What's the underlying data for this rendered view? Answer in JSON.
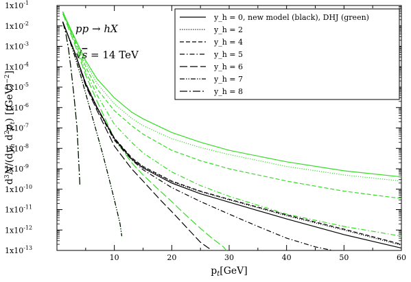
{
  "chart_data": {
    "type": "line",
    "title": "",
    "xlabel": "p_t [GeV]",
    "ylabel": "d³N/(dy_h d²p_t) [(GeV)⁻²]",
    "xlim": [
      0,
      60
    ],
    "ylim": [
      1e-13,
      0.1
    ],
    "yscale": "log",
    "grid": false,
    "legend_position": "top-right",
    "x_ticks": [
      10,
      20,
      30,
      40,
      50,
      60
    ],
    "x_tick_labels": [
      "10",
      "20",
      "30",
      "40",
      "50",
      "60"
    ],
    "y_tick_labels": [
      "1x10",
      "1x10",
      "1x10",
      "1x10",
      "1x10",
      "1x10",
      "1x10",
      "1x10",
      "1x10",
      "1x10",
      "1x10",
      "1x10",
      "1x10"
    ],
    "y_tick_exponents": [
      "-1",
      "-2",
      "-3",
      "-4",
      "-5",
      "-6",
      "-7",
      "-8",
      "-9",
      "-10",
      "-11",
      "-12",
      "-13"
    ],
    "annotations": [
      "pp → hX",
      "√s = 14 TeV"
    ],
    "colors": {
      "new_model": "#000000",
      "DHJ": "#33dd22"
    },
    "legend": [
      {
        "label": "y_h = 0, new model (black), DHJ (green)",
        "dash": "solid"
      },
      {
        "label": "y_h = 2",
        "dash": "dotted"
      },
      {
        "label": "y_h = 4",
        "dash": "dash"
      },
      {
        "label": "y_h = 5",
        "dash": "dashdot"
      },
      {
        "label": "y_h = 6",
        "dash": "longdash"
      },
      {
        "label": "y_h = 7",
        "dash": "dashdotdot"
      },
      {
        "label": "y_h = 8",
        "dash": "longdashdot"
      }
    ],
    "series": [
      {
        "model": "new model",
        "yh": "0",
        "dash": "solid",
        "color": "#000000",
        "x": [
          1,
          2,
          3,
          5,
          7,
          10,
          13,
          15,
          20,
          25,
          30,
          40,
          50,
          60
        ],
        "y": [
          0.016,
          0.003,
          0.0006,
          1.5e-05,
          1e-06,
          3e-08,
          3e-09,
          1.1e-09,
          2e-10,
          6e-11,
          2.3e-11,
          3.5e-12,
          6e-13,
          1.3e-13
        ]
      },
      {
        "model": "new model",
        "yh": "2",
        "dash": "dotted",
        "color": "#000000",
        "x": [
          1,
          2,
          3,
          5,
          7,
          10,
          13,
          15,
          20,
          25,
          30,
          40,
          50,
          60
        ],
        "y": [
          0.016,
          0.003,
          0.0006,
          1.5e-05,
          1e-06,
          3e-08,
          3.2e-09,
          1.2e-09,
          2.3e-10,
          7.5e-11,
          3e-11,
          5e-12,
          1e-12,
          1.8e-13
        ]
      },
      {
        "model": "new model",
        "yh": "4",
        "dash": "dash",
        "color": "#000000",
        "x": [
          1,
          2,
          3,
          5,
          7,
          10,
          13,
          15,
          20,
          25,
          30,
          40,
          50,
          60
        ],
        "y": [
          0.016,
          0.003,
          0.0006,
          1.6e-05,
          1e-06,
          3.2e-08,
          3.5e-09,
          1.3e-09,
          2.5e-10,
          8e-11,
          3.2e-11,
          5.5e-12,
          1.1e-12,
          2e-13
        ]
      },
      {
        "model": "new model",
        "yh": "5",
        "dash": "dashdot",
        "color": "#000000",
        "x": [
          1,
          2,
          3,
          5,
          7,
          10,
          13,
          15,
          20,
          25,
          30,
          35,
          40,
          45,
          48
        ],
        "y": [
          0.016,
          0.003,
          0.0006,
          1.4e-05,
          9e-07,
          2.5e-08,
          2.8e-09,
          9e-10,
          1.2e-10,
          2.5e-11,
          6e-12,
          1.5e-12,
          4e-13,
          1.5e-13,
          1e-13
        ]
      },
      {
        "model": "new model",
        "yh": "6",
        "dash": "longdash",
        "color": "#000000",
        "x": [
          1,
          2,
          3,
          5,
          7,
          10,
          13,
          15,
          18,
          20,
          22,
          25,
          27
        ],
        "y": [
          0.016,
          0.003,
          0.0006,
          1.2e-05,
          7e-07,
          1.3e-08,
          1e-09,
          2.5e-10,
          3e-11,
          8e-12,
          2e-12,
          2.5e-13,
          1e-13
        ]
      },
      {
        "model": "new model",
        "yh": "7",
        "dash": "dashdotdot",
        "color": "#000000",
        "x": [
          1,
          1.5,
          2,
          3,
          4,
          5,
          6,
          7,
          8,
          9,
          10,
          10.5,
          11,
          11.3
        ],
        "y": [
          0.016,
          0.007,
          0.003,
          0.0004,
          5e-05,
          5e-06,
          5e-07,
          5e-08,
          5e-09,
          4e-10,
          3e-11,
          8e-12,
          2e-12,
          5e-13
        ]
      },
      {
        "model": "new model",
        "yh": "8",
        "dash": "longdashdot",
        "color": "#000000",
        "x": [
          1,
          1.5,
          2,
          2.5,
          3,
          3.5,
          4
        ],
        "y": [
          0.016,
          0.005,
          0.0008,
          6e-05,
          3e-06,
          1e-07,
          1.5e-10
        ]
      },
      {
        "model": "DHJ",
        "yh": "0",
        "dash": "solid",
        "color": "#33dd22",
        "x": [
          1,
          2,
          3,
          5,
          7,
          10,
          13,
          15,
          20,
          25,
          30,
          40,
          50,
          60
        ],
        "y": [
          0.05,
          0.012,
          0.003,
          0.0002,
          2.5e-05,
          3e-06,
          6e-07,
          2.8e-07,
          6e-08,
          2e-08,
          8e-09,
          2.2e-09,
          8e-10,
          4e-10
        ]
      },
      {
        "model": "DHJ",
        "yh": "2",
        "dash": "dotted",
        "color": "#33dd22",
        "x": [
          1,
          2,
          3,
          5,
          7,
          10,
          13,
          15,
          20,
          25,
          30,
          40,
          50,
          60
        ],
        "y": [
          0.05,
          0.012,
          0.003,
          0.00015,
          1.5e-05,
          1.5e-06,
          3e-07,
          1.3e-07,
          3e-08,
          1.1e-08,
          5e-09,
          1.3e-09,
          5e-10,
          2.5e-10
        ]
      },
      {
        "model": "DHJ",
        "yh": "4",
        "dash": "dash",
        "color": "#33dd22",
        "x": [
          1,
          2,
          3,
          5,
          7,
          10,
          13,
          15,
          20,
          25,
          30,
          40,
          50,
          60
        ],
        "y": [
          0.05,
          0.011,
          0.0025,
          0.0001,
          8e-06,
          7e-07,
          1.3e-07,
          5e-08,
          8e-09,
          2.5e-09,
          1e-09,
          2.5e-10,
          8e-11,
          3.5e-11
        ]
      },
      {
        "model": "DHJ",
        "yh": "5",
        "dash": "dashdot",
        "color": "#33dd22",
        "x": [
          1,
          2,
          3,
          5,
          7,
          10,
          13,
          15,
          20,
          25,
          30,
          40,
          50,
          60
        ],
        "y": [
          0.05,
          0.01,
          0.002,
          6e-05,
          4e-06,
          1.5e-07,
          2e-08,
          6e-09,
          7e-10,
          1.5e-10,
          4.5e-11,
          6e-12,
          1.5e-12,
          5e-13
        ]
      },
      {
        "model": "DHJ",
        "yh": "6",
        "dash": "longdash",
        "color": "#33dd22",
        "x": [
          1,
          2,
          3,
          5,
          7,
          10,
          13,
          15,
          18,
          20,
          22,
          25,
          27,
          29,
          29.5
        ],
        "y": [
          0.04,
          0.008,
          0.0015,
          4e-05,
          2e-06,
          3e-08,
          2e-09,
          5e-10,
          8e-11,
          2.5e-11,
          7e-12,
          1.2e-12,
          4e-13,
          1.5e-13,
          1e-13
        ]
      },
      {
        "model": "DHJ",
        "yh": "7",
        "dash": "dashdotdot",
        "color": "#33dd22",
        "x": [
          1,
          1.5,
          2,
          3,
          4,
          5,
          6,
          7,
          8,
          9,
          10,
          10.5,
          11,
          11.3
        ],
        "y": [
          0.016,
          0.007,
          0.003,
          0.0004,
          5e-05,
          5e-06,
          5e-07,
          5e-08,
          5e-09,
          4e-10,
          3e-11,
          8e-12,
          2e-12,
          5e-13
        ]
      },
      {
        "model": "DHJ",
        "yh": "8",
        "dash": "longdashdot",
        "color": "#33dd22",
        "x": [
          1,
          1.5,
          2,
          2.5,
          3,
          3.5,
          4
        ],
        "y": [
          0.016,
          0.005,
          0.0008,
          6e-05,
          3e-06,
          1e-07,
          1.5e-10
        ]
      }
    ]
  }
}
